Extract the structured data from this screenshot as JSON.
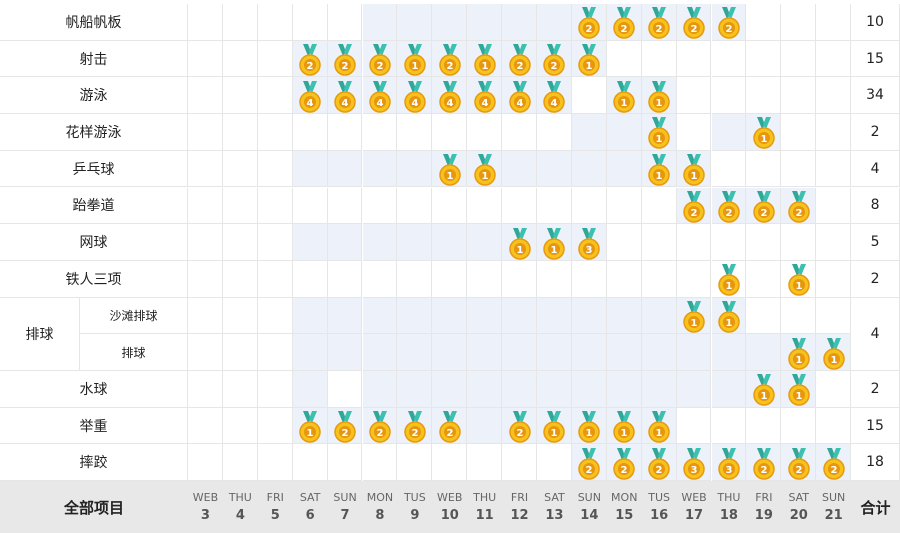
{
  "table": {
    "rows": [
      {
        "sport": "帆船帆板",
        "medals": [
          null,
          null,
          null,
          null,
          null,
          null,
          null,
          null,
          null,
          null,
          null,
          2,
          2,
          2,
          2,
          2,
          null,
          null,
          null
        ],
        "shaded": [
          false,
          false,
          false,
          false,
          false,
          true,
          true,
          true,
          true,
          true,
          true,
          true,
          true,
          true,
          true,
          true,
          false,
          false,
          false
        ],
        "total": 10
      },
      {
        "sport": "射击",
        "medals": [
          null,
          null,
          null,
          2,
          2,
          2,
          1,
          2,
          1,
          2,
          2,
          1,
          null,
          null,
          null,
          null,
          null,
          null,
          null
        ],
        "shaded": [
          false,
          false,
          false,
          true,
          true,
          true,
          true,
          true,
          true,
          true,
          true,
          true,
          false,
          false,
          false,
          false,
          false,
          false,
          false
        ],
        "total": 15
      },
      {
        "sport": "游泳",
        "medals": [
          null,
          null,
          null,
          4,
          4,
          4,
          4,
          4,
          4,
          4,
          4,
          null,
          1,
          1,
          null,
          null,
          null,
          null,
          null
        ],
        "shaded": [
          false,
          false,
          false,
          true,
          true,
          true,
          true,
          true,
          true,
          true,
          true,
          false,
          true,
          true,
          false,
          false,
          false,
          false,
          false
        ],
        "total": 34
      },
      {
        "sport": "花样游泳",
        "medals": [
          null,
          null,
          null,
          null,
          null,
          null,
          null,
          null,
          null,
          null,
          null,
          null,
          null,
          1,
          null,
          null,
          1,
          null,
          null
        ],
        "shaded": [
          false,
          false,
          false,
          false,
          false,
          false,
          false,
          false,
          false,
          false,
          false,
          true,
          true,
          true,
          false,
          true,
          true,
          false,
          false
        ],
        "total": 2
      },
      {
        "sport": "乒乓球",
        "medals": [
          null,
          null,
          null,
          null,
          null,
          null,
          null,
          1,
          1,
          null,
          null,
          null,
          null,
          1,
          1,
          null,
          null,
          null,
          null
        ],
        "shaded": [
          false,
          false,
          false,
          true,
          true,
          true,
          true,
          true,
          true,
          true,
          true,
          true,
          true,
          true,
          true,
          false,
          false,
          false,
          false
        ],
        "total": 4
      },
      {
        "sport": "跆拳道",
        "medals": [
          null,
          null,
          null,
          null,
          null,
          null,
          null,
          null,
          null,
          null,
          null,
          null,
          null,
          null,
          2,
          2,
          2,
          2,
          null
        ],
        "shaded": [
          false,
          false,
          false,
          false,
          false,
          false,
          false,
          false,
          false,
          false,
          false,
          false,
          false,
          false,
          true,
          true,
          true,
          true,
          false
        ],
        "total": 8
      },
      {
        "sport": "网球",
        "medals": [
          null,
          null,
          null,
          null,
          null,
          null,
          null,
          null,
          null,
          1,
          1,
          3,
          null,
          null,
          null,
          null,
          null,
          null,
          null
        ],
        "shaded": [
          false,
          false,
          false,
          true,
          true,
          true,
          true,
          true,
          true,
          true,
          true,
          true,
          false,
          false,
          false,
          false,
          false,
          false,
          false
        ],
        "total": 5
      },
      {
        "sport": "铁人三项",
        "medals": [
          null,
          null,
          null,
          null,
          null,
          null,
          null,
          null,
          null,
          null,
          null,
          null,
          null,
          null,
          null,
          1,
          null,
          1,
          null
        ],
        "shaded": [
          false,
          false,
          false,
          false,
          false,
          false,
          false,
          false,
          false,
          false,
          false,
          false,
          false,
          false,
          false,
          false,
          false,
          false,
          false
        ],
        "total": 2
      },
      {
        "sport": "排球",
        "subrows": [
          {
            "event": "沙滩排球",
            "medals": [
              null,
              null,
              null,
              null,
              null,
              null,
              null,
              null,
              null,
              null,
              null,
              null,
              null,
              null,
              1,
              1,
              null,
              null,
              null
            ],
            "shaded": [
              false,
              false,
              false,
              true,
              true,
              true,
              true,
              true,
              true,
              true,
              true,
              true,
              true,
              true,
              true,
              true,
              false,
              false,
              false
            ]
          },
          {
            "event": "排球",
            "medals": [
              null,
              null,
              null,
              null,
              null,
              null,
              null,
              null,
              null,
              null,
              null,
              null,
              null,
              null,
              null,
              null,
              null,
              1,
              1
            ],
            "shaded": [
              false,
              false,
              false,
              true,
              true,
              true,
              true,
              true,
              true,
              true,
              true,
              true,
              true,
              true,
              true,
              true,
              true,
              true,
              true
            ]
          }
        ],
        "total": 4
      },
      {
        "sport": "水球",
        "medals": [
          null,
          null,
          null,
          null,
          null,
          null,
          null,
          null,
          null,
          null,
          null,
          null,
          null,
          null,
          null,
          null,
          1,
          1,
          null
        ],
        "shaded": [
          false,
          false,
          false,
          true,
          false,
          true,
          true,
          true,
          true,
          true,
          true,
          true,
          true,
          true,
          true,
          true,
          true,
          true,
          false
        ],
        "total": 2
      },
      {
        "sport": "举重",
        "medals": [
          null,
          null,
          null,
          1,
          2,
          2,
          2,
          2,
          null,
          2,
          1,
          1,
          1,
          1,
          null,
          null,
          null,
          null,
          null
        ],
        "shaded": [
          false,
          false,
          false,
          true,
          true,
          true,
          true,
          true,
          true,
          true,
          true,
          true,
          true,
          true,
          false,
          false,
          false,
          false,
          false
        ],
        "total": 15
      },
      {
        "sport": "摔跤",
        "medals": [
          null,
          null,
          null,
          null,
          null,
          null,
          null,
          null,
          null,
          null,
          null,
          2,
          2,
          2,
          3,
          3,
          2,
          2,
          2
        ],
        "shaded": [
          false,
          false,
          false,
          false,
          false,
          false,
          false,
          false,
          false,
          false,
          false,
          true,
          true,
          true,
          true,
          true,
          true,
          true,
          true
        ],
        "total": 18
      }
    ],
    "footer": {
      "label": "全部项目",
      "total_label": "合计",
      "days": [
        {
          "weekday": "WEB",
          "date": 3
        },
        {
          "weekday": "THU",
          "date": 4
        },
        {
          "weekday": "FRI",
          "date": 5
        },
        {
          "weekday": "SAT",
          "date": 6
        },
        {
          "weekday": "SUN",
          "date": 7
        },
        {
          "weekday": "MON",
          "date": 8
        },
        {
          "weekday": "TUS",
          "date": 9
        },
        {
          "weekday": "WEB",
          "date": 10
        },
        {
          "weekday": "THU",
          "date": 11
        },
        {
          "weekday": "FRI",
          "date": 12
        },
        {
          "weekday": "SAT",
          "date": 13
        },
        {
          "weekday": "SUN",
          "date": 14
        },
        {
          "weekday": "MON",
          "date": 15
        },
        {
          "weekday": "TUS",
          "date": 16
        },
        {
          "weekday": "WEB",
          "date": 17
        },
        {
          "weekday": "THU",
          "date": 18
        },
        {
          "weekday": "FRI",
          "date": 19
        },
        {
          "weekday": "SAT",
          "date": 20
        },
        {
          "weekday": "SUN",
          "date": 21
        }
      ]
    }
  }
}
